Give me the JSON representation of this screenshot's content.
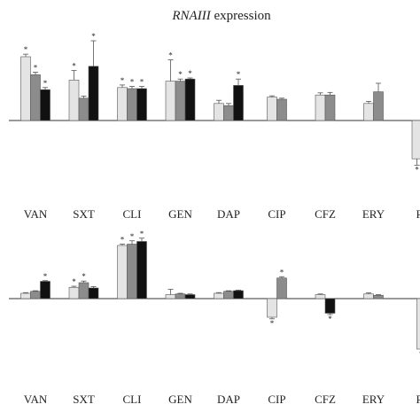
{
  "chart_data": [
    {
      "type": "bar",
      "title_italic": "RNAIII",
      "title_rest": " expression",
      "categories": [
        "VAN",
        "SXT",
        "CLI",
        "GEN",
        "DAP",
        "CIP",
        "CFZ",
        "ERY",
        "RI"
      ],
      "colors": [
        "#e4e4e4",
        "#8c8c8c",
        "#111111"
      ],
      "series": [
        {
          "values": [
            3.0,
            1.9,
            1.55,
            1.85,
            0.8,
            1.1,
            1.2,
            0.8,
            -1.8
          ],
          "errors": [
            0.12,
            0.45,
            0.12,
            1.0,
            0.15,
            0.06,
            0.1,
            0.1,
            0.3
          ],
          "stars": [
            true,
            true,
            true,
            true,
            false,
            false,
            false,
            false,
            true
          ]
        },
        {
          "values": [
            2.15,
            1.05,
            1.5,
            1.85,
            0.7,
            1.0,
            1.2,
            1.35,
            -1.8
          ],
          "errors": [
            0.12,
            0.1,
            0.1,
            0.1,
            0.1,
            0.05,
            0.12,
            0.4,
            0.3
          ],
          "stars": [
            true,
            false,
            true,
            true,
            false,
            false,
            false,
            false,
            true
          ]
        },
        {
          "values": [
            1.45,
            2.55,
            1.5,
            1.95,
            1.65,
            null,
            null,
            null,
            null
          ],
          "errors": [
            0.1,
            1.2,
            0.1,
            0.05,
            0.3,
            0,
            0,
            0,
            0
          ],
          "stars": [
            true,
            true,
            true,
            true,
            true,
            false,
            false,
            false,
            false
          ]
        }
      ]
    },
    {
      "type": "bar",
      "categories": [
        "VAN",
        "SXT",
        "CLI",
        "GEN",
        "DAP",
        "CIP",
        "CFZ",
        "ERY",
        "RI"
      ],
      "colors": [
        "#e4e4e4",
        "#8c8c8c",
        "#111111"
      ],
      "series": [
        {
          "values": [
            0.4,
            0.85,
            4.0,
            0.3,
            0.4,
            -1.4,
            0.3,
            0.35,
            -3.8
          ],
          "errors": [
            0.05,
            0.08,
            0.1,
            0.4,
            0.05,
            0.12,
            0.05,
            0.08,
            0.25
          ],
          "stars": [
            false,
            true,
            true,
            false,
            false,
            true,
            false,
            false,
            true
          ]
        },
        {
          "values": [
            0.55,
            1.2,
            4.1,
            0.35,
            0.55,
            1.55,
            null,
            0.25,
            null
          ],
          "errors": [
            0.04,
            0.12,
            0.25,
            0.05,
            0.04,
            0.1,
            0,
            0.05,
            0
          ],
          "stars": [
            false,
            true,
            true,
            false,
            false,
            true,
            false,
            false,
            false
          ]
        },
        {
          "values": [
            1.3,
            0.8,
            4.3,
            0.3,
            0.6,
            null,
            -1.1,
            null,
            null
          ],
          "errors": [
            0.05,
            0.1,
            0.25,
            0.05,
            0.04,
            0,
            0.1,
            0,
            0
          ],
          "stars": [
            true,
            false,
            true,
            false,
            false,
            false,
            true,
            false,
            false
          ]
        }
      ]
    }
  ]
}
